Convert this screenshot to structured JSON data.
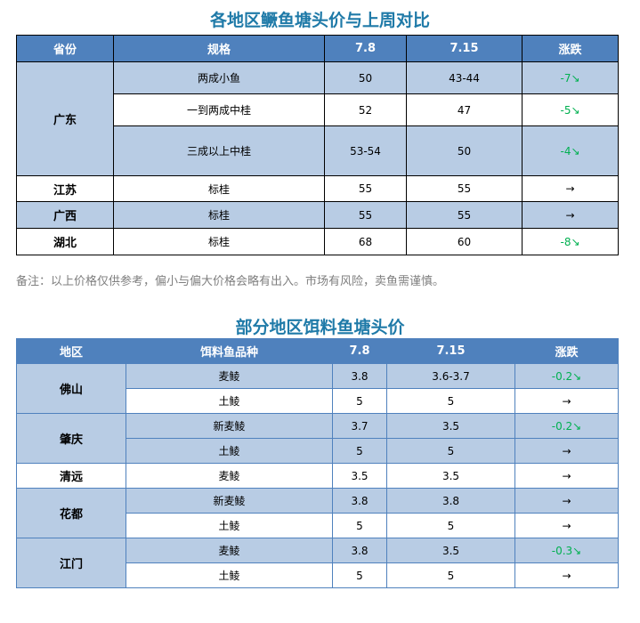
{
  "table1": {
    "title": "各地区鳜鱼塘头价与上周对比",
    "headers": [
      "省份",
      "规格",
      "7.8",
      "7.15",
      "涨跌"
    ],
    "groups": [
      {
        "region": "广东",
        "rows": [
          [
            "两成小鱼",
            "50",
            "43-44",
            "-7↘"
          ],
          [
            "一到两成中桂",
            "52",
            "47",
            "-5↘"
          ],
          [
            "三成以上中桂",
            "53-54",
            "50",
            "-4↘"
          ]
        ]
      },
      {
        "region": "江苏",
        "rows": [
          [
            "标桂",
            "55",
            "55",
            "→"
          ]
        ]
      },
      {
        "region": "广西",
        "rows": [
          [
            "标桂",
            "55",
            "55",
            "→"
          ]
        ]
      },
      {
        "region": "湖北",
        "rows": [
          [
            "标桂",
            "68",
            "60",
            "-8↘"
          ]
        ]
      }
    ],
    "note": "备注：以上价格仅供参考，偏小与偏大价格会略有出入。市场有风险，卖鱼需谨慎。"
  },
  "table2": {
    "title": "部分地区饵料鱼塘头价",
    "headers": [
      "地区",
      "饵料鱼品种",
      "7.8",
      "7.15",
      "涨跌"
    ],
    "groups": [
      {
        "region": "佛山",
        "rows": [
          [
            "麦鲮",
            "3.8",
            "3.6-3.7",
            "-0.2↘"
          ],
          [
            "土鲮",
            "5",
            "5",
            "→"
          ]
        ]
      },
      {
        "region": "肇庆",
        "rows": [
          [
            "新麦鲮",
            "3.7",
            "3.5",
            "-0.2↘"
          ],
          [
            "土鲮",
            "5",
            "5",
            "→"
          ]
        ]
      },
      {
        "region": "清远",
        "rows": [
          [
            "麦鲮",
            "3.5",
            "3.5",
            "→"
          ]
        ]
      },
      {
        "region": "花都",
        "rows": [
          [
            "新麦鲮",
            "3.8",
            "3.8",
            "→"
          ],
          [
            "土鲮",
            "5",
            "5",
            "→"
          ]
        ]
      },
      {
        "region": "江门",
        "rows": [
          [
            "麦鲮",
            "3.8",
            "3.5",
            "-0.3↘"
          ],
          [
            "土鲮",
            "5",
            "5",
            "→"
          ]
        ]
      }
    ]
  },
  "colors": {
    "header": "#4f81bd",
    "light_row": "#b8cce4",
    "title": "#1f7aa8",
    "decrease": "#00b050"
  }
}
